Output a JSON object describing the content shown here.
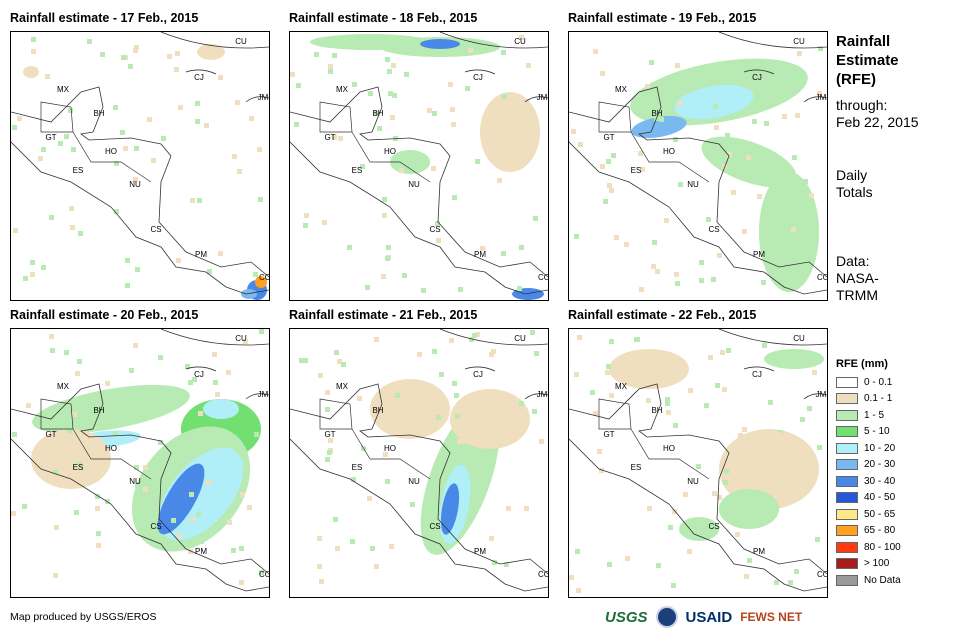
{
  "panels": [
    {
      "title": "Rainfall estimate - 17 Feb., 2015"
    },
    {
      "title": "Rainfall estimate - 18 Feb., 2015"
    },
    {
      "title": "Rainfall estimate - 19 Feb., 2015"
    },
    {
      "title": "Rainfall estimate - 20 Feb., 2015"
    },
    {
      "title": "Rainfall estimate - 21 Feb., 2015"
    },
    {
      "title": "Rainfall estimate - 22 Feb., 2015"
    }
  ],
  "country_labels": [
    "MX",
    "BH",
    "GT",
    "HO",
    "ES",
    "NU",
    "CS",
    "PM",
    "CO",
    "CU",
    "CJ",
    "JM"
  ],
  "info": {
    "title_line1": "Rainfall",
    "title_line2": "Estimate",
    "title_line3": "(RFE)",
    "through": "through:",
    "date": "Feb 22, 2015",
    "totals_line1": "Daily",
    "totals_line2": "Totals",
    "data_line1": "Data:",
    "data_line2": "NASA-",
    "data_line3": "TRMM"
  },
  "legend": {
    "title": "RFE (mm)",
    "items": [
      {
        "label": "0 - 0.1",
        "color": "#ffffff"
      },
      {
        "label": "0.1 - 1",
        "color": "#f0dfbf"
      },
      {
        "label": "1 - 5",
        "color": "#b8eab4"
      },
      {
        "label": "5 - 10",
        "color": "#72e070"
      },
      {
        "label": "10 - 20",
        "color": "#b0eef8"
      },
      {
        "label": "20 - 30",
        "color": "#7ab8f0"
      },
      {
        "label": "30 - 40",
        "color": "#4a88e8"
      },
      {
        "label": "40 - 50",
        "color": "#2458d8"
      },
      {
        "label": "50 - 65",
        "color": "#ffe88a"
      },
      {
        "label": "65 - 80",
        "color": "#ffa020"
      },
      {
        "label": "80 - 100",
        "color": "#ff3a10"
      },
      {
        "label": "> 100",
        "color": "#a81c1c"
      },
      {
        "label": "No Data",
        "color": "#9a9a9a"
      }
    ]
  },
  "credit": "Map produced by USGS/EROS",
  "logos": {
    "usgs": "USGS",
    "usaid": "USAID",
    "fews": "FEWS NET"
  }
}
